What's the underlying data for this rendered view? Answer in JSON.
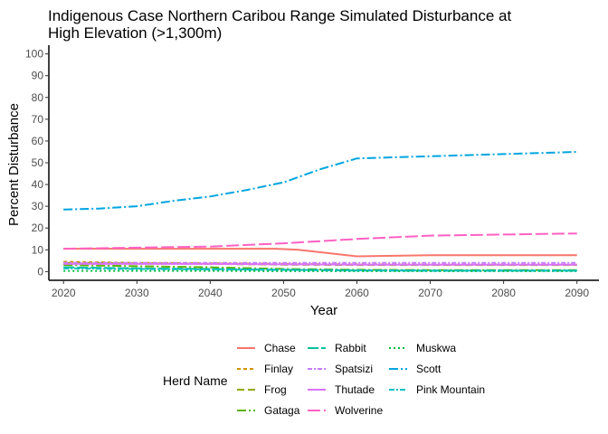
{
  "chart_data": {
    "type": "line",
    "title_line1": "Indigenous Case Northern Caribou Range Simulated Disturbance at",
    "title_line2": "High Elevation (>1,300m)",
    "xlabel": "Year",
    "ylabel": "Percent Disturbance",
    "xlim": [
      2018,
      2093
    ],
    "ylim": [
      -4,
      104
    ],
    "xticks": [
      2020,
      2030,
      2040,
      2050,
      2060,
      2070,
      2080,
      2090
    ],
    "yticks": [
      0,
      10,
      20,
      30,
      40,
      50,
      60,
      70,
      80,
      90,
      100
    ],
    "grid": false,
    "legend": {
      "title": "Herd Name",
      "placement": "bottom"
    },
    "series": [
      {
        "name": "Chase",
        "color": "#F8766D",
        "dash": "none",
        "x": [
          2020,
          2030,
          2040,
          2049,
          2052,
          2056,
          2060,
          2070,
          2080,
          2090
        ],
        "y": [
          10.5,
          10.5,
          10.5,
          10.5,
          10,
          8.5,
          7,
          7.5,
          7.5,
          7.5
        ]
      },
      {
        "name": "Finlay",
        "color": "#D39200",
        "dash": "4,3",
        "x": [
          2020,
          2030,
          2040,
          2050,
          2060,
          2070,
          2080,
          2090
        ],
        "y": [
          4.5,
          4,
          3.8,
          3.5,
          3.3,
          3.2,
          3.2,
          3.2
        ]
      },
      {
        "name": "Frog",
        "color": "#93AA00",
        "dash": "8,4",
        "x": [
          2020,
          2030,
          2040,
          2050,
          2060,
          2070,
          2080,
          2090
        ],
        "y": [
          4,
          3.8,
          3.5,
          3.2,
          3,
          3,
          3,
          3
        ]
      },
      {
        "name": "Gataga",
        "color": "#5BB300",
        "dash": "10,3,2,3",
        "x": [
          2020,
          2030,
          2040,
          2050,
          2060,
          2070,
          2080,
          2090
        ],
        "y": [
          3,
          2.5,
          2,
          1.2,
          0.8,
          0.7,
          0.7,
          0.7
        ]
      },
      {
        "name": "Rabbit",
        "color": "#00C19F",
        "dash": "12,3",
        "x": [
          2020,
          2030,
          2040,
          2050,
          2060,
          2070,
          2080,
          2090
        ],
        "y": [
          2,
          1.5,
          1.2,
          0.8,
          0.5,
          0.4,
          0.4,
          0.4
        ]
      },
      {
        "name": "Spatsizi",
        "color": "#C77CFF",
        "dash": "5,2,2,2",
        "x": [
          2020,
          2030,
          2040,
          2050,
          2060,
          2070,
          2080,
          2090
        ],
        "y": [
          4,
          4,
          4,
          4,
          4,
          4,
          4,
          4
        ]
      },
      {
        "name": "Thutade",
        "color": "#DB72FB",
        "dash": "none",
        "x": [
          2020,
          2030,
          2040,
          2050,
          2060,
          2070,
          2080,
          2090
        ],
        "y": [
          3.5,
          3.5,
          3.5,
          3.3,
          3.2,
          3.2,
          3.2,
          3.2
        ]
      },
      {
        "name": "Wolverine",
        "color": "#FF61C3",
        "dash": "14,4",
        "x": [
          2020,
          2030,
          2040,
          2050,
          2055,
          2060,
          2070,
          2080,
          2090
        ],
        "y": [
          10.5,
          11,
          11.5,
          13,
          14,
          15,
          16.5,
          17,
          17.5
        ]
      },
      {
        "name": "Muskwa",
        "color": "#00BA38",
        "dash": "2,3",
        "x": [
          2020,
          2030,
          2040,
          2050,
          2060,
          2070,
          2080,
          2090
        ],
        "y": [
          0.3,
          0.3,
          0.3,
          0.2,
          0.2,
          0.2,
          0.2,
          0.2
        ]
      },
      {
        "name": "Scott",
        "color": "#00A5E0",
        "dash": "10,3,2,3",
        "x": [
          2020,
          2025,
          2030,
          2035,
          2040,
          2045,
          2050,
          2055,
          2060,
          2065,
          2070,
          2075,
          2080,
          2085,
          2090
        ],
        "y": [
          28.5,
          29,
          30,
          32.5,
          34.5,
          37.5,
          41,
          47,
          52,
          52.5,
          53,
          53.5,
          54,
          54.5,
          55
        ]
      },
      {
        "name": "Pink Mountain",
        "color": "#00BFC4",
        "dash": "6,2,2,2",
        "x": [
          2020,
          2030,
          2040,
          2050,
          2060,
          2070,
          2080,
          2090
        ],
        "y": [
          1.5,
          1.2,
          1,
          0.8,
          0.6,
          0.5,
          0.5,
          0.5
        ]
      }
    ]
  }
}
